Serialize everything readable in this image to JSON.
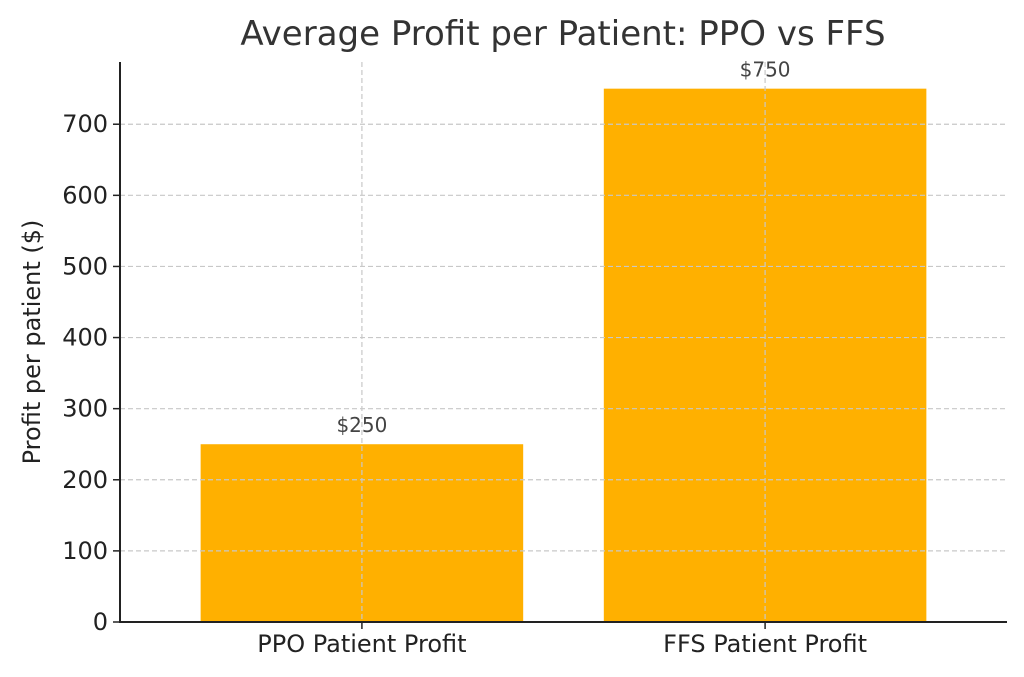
{
  "chart_data": {
    "type": "bar",
    "title": "Average Profit per Patient: PPO vs FFS",
    "xlabel": "",
    "ylabel": "Profit per patient ($)",
    "categories": [
      "PPO Patient Profit",
      "FFS Patient Profit"
    ],
    "values": [
      250,
      750
    ],
    "data_labels": [
      "$250",
      "$750"
    ],
    "ylim": [
      0,
      787.5
    ],
    "yticks": [
      0,
      100,
      200,
      300,
      400,
      500,
      600,
      700
    ],
    "ytick_labels": [
      "0",
      "100",
      "200",
      "300",
      "400",
      "500",
      "600",
      "700"
    ],
    "grid": true,
    "bar_color": "#FFB000",
    "legend": "none"
  }
}
